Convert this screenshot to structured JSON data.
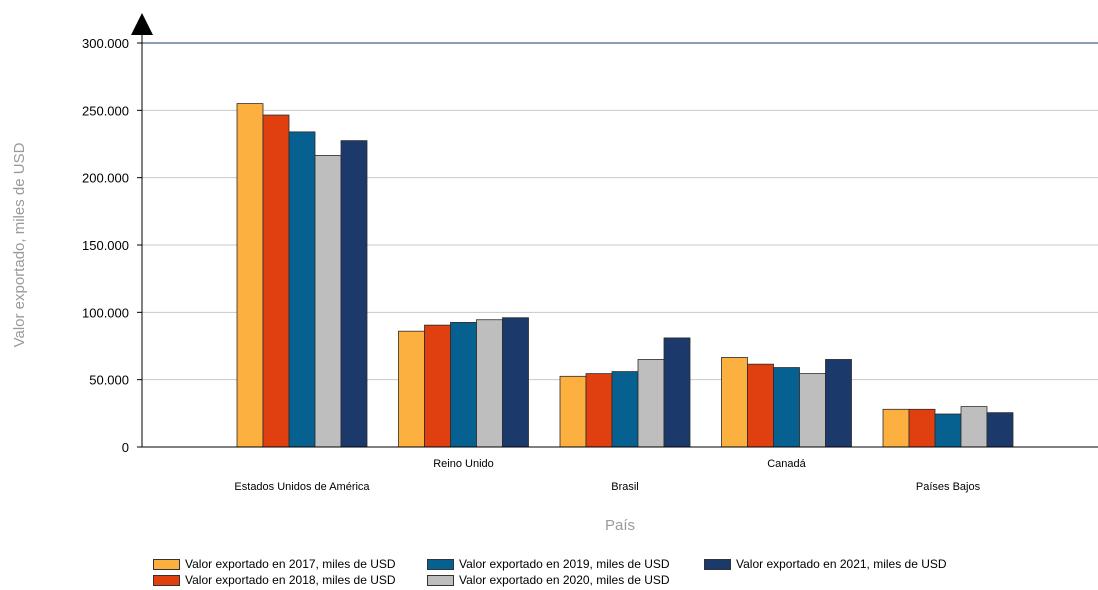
{
  "chart_data": {
    "type": "bar",
    "title": "",
    "xlabel": "País",
    "ylabel": "Valor exportado, miles de USD",
    "ylim": [
      0,
      300000
    ],
    "yticks": [
      0,
      50000,
      100000,
      150000,
      200000,
      250000,
      300000
    ],
    "ytick_labels": [
      "0",
      "50.000",
      "100.000",
      "150.000",
      "200.000",
      "250.000",
      "300.000"
    ],
    "grid": true,
    "legend_position": "bottom",
    "categories": [
      "Estados Unidos de América",
      "Reino Unido",
      "Brasil",
      "Canadá",
      "Países Bajos"
    ],
    "series": [
      {
        "name": "Valor exportado en 2017, miles de USD",
        "color": "#FBB040",
        "values": [
          255000,
          86000,
          52500,
          66500,
          28000
        ]
      },
      {
        "name": "Valor exportado en 2018, miles de USD",
        "color": "#E0400F",
        "values": [
          246500,
          90500,
          54500,
          61500,
          28000
        ]
      },
      {
        "name": "Valor exportado en 2019, miles de USD",
        "color": "#066090",
        "values": [
          234000,
          92500,
          56000,
          59000,
          24500
        ]
      },
      {
        "name": "Valor exportado en 2020, miles de USD",
        "color": "#BEBEBE",
        "values": [
          216500,
          94500,
          65000,
          54500,
          30000
        ]
      },
      {
        "name": "Valor exportado en 2021, miles de USD",
        "color": "#1B3A6B",
        "values": [
          227500,
          96000,
          81000,
          65000,
          25500
        ]
      }
    ]
  }
}
